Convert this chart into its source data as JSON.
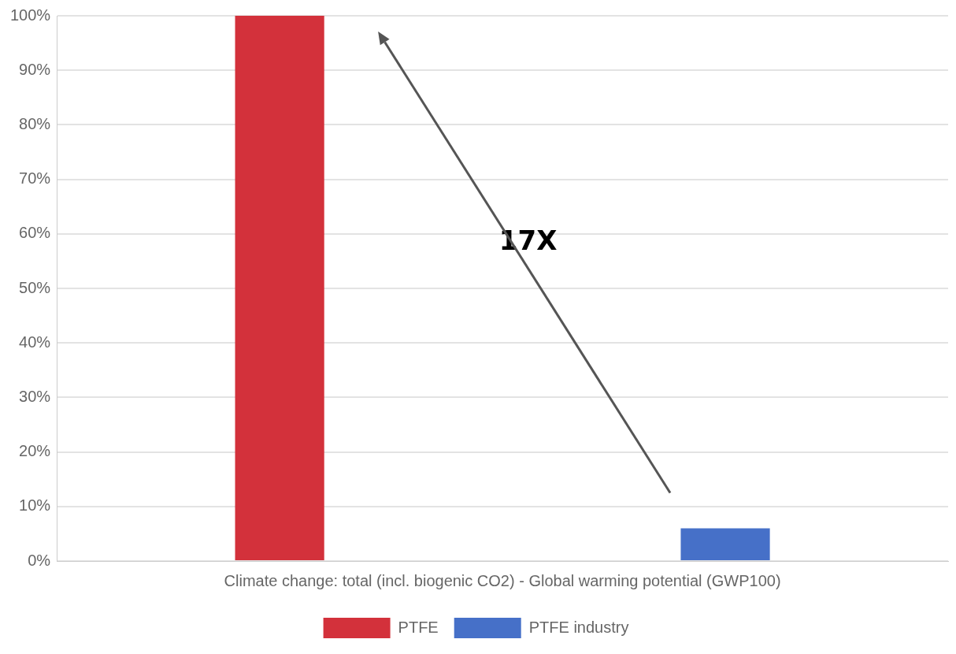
{
  "chart_data": {
    "type": "bar",
    "categories": [
      "Climate change: total (incl. biogenic CO2) - Global warming potential (GWP100)"
    ],
    "series": [
      {
        "name": "PTFE",
        "color": "#d3313b",
        "values": [
          100
        ]
      },
      {
        "name": "PTFE industry",
        "color": "#4670c8",
        "values": [
          6
        ]
      }
    ],
    "ylim": [
      0,
      100
    ],
    "yticks": [
      {
        "value": 0,
        "label": "0%"
      },
      {
        "value": 10,
        "label": "10%"
      },
      {
        "value": 20,
        "label": "20%"
      },
      {
        "value": 30,
        "label": "30%"
      },
      {
        "value": 40,
        "label": "40%"
      },
      {
        "value": 50,
        "label": "50%"
      },
      {
        "value": 60,
        "label": "60%"
      },
      {
        "value": 70,
        "label": "70%"
      },
      {
        "value": 80,
        "label": "80%"
      },
      {
        "value": 90,
        "label": "90%"
      },
      {
        "value": 100,
        "label": "100%"
      }
    ],
    "grid": "y",
    "legend": "bottom",
    "annotations": [
      "17X"
    ]
  }
}
